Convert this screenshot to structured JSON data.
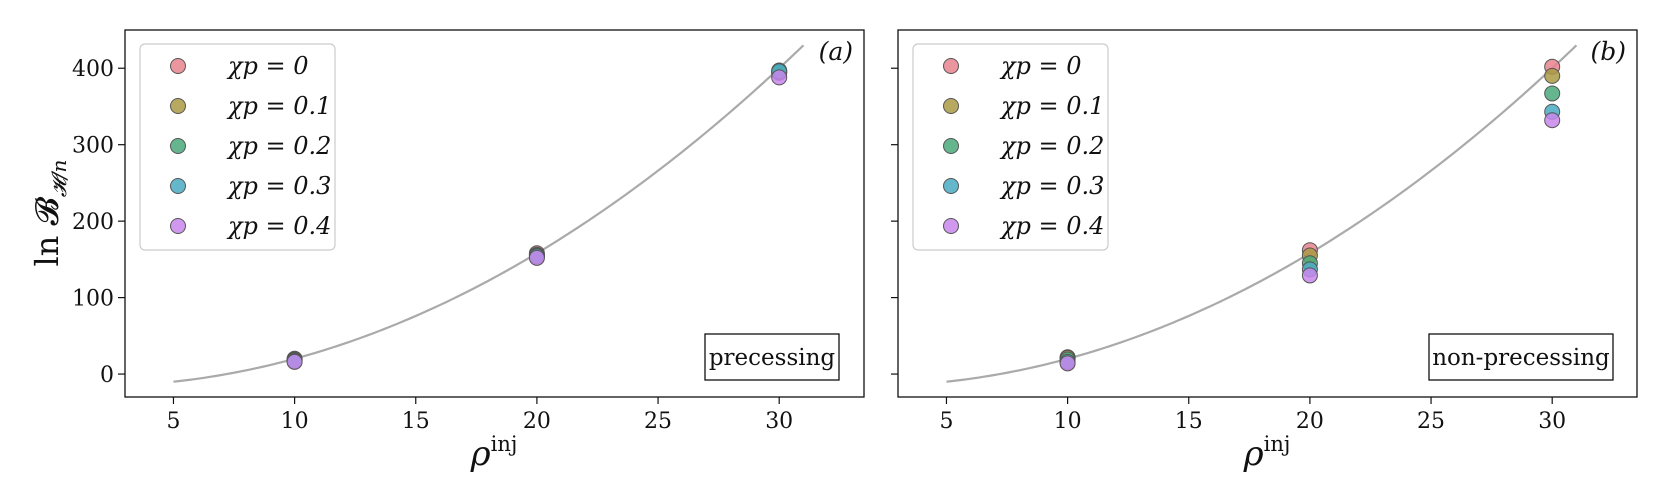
{
  "chart_data": [
    {
      "type": "scatter",
      "panel_label": "(a)",
      "box_label": "precessing",
      "xlabel": "ρ",
      "xlabel_sup": "inj",
      "ylabel": "ln 𝓑",
      "ylabel_sub": "𝓗/n",
      "xlim": [
        3,
        33.5
      ],
      "ylim": [
        -30,
        450
      ],
      "xticks": [
        5,
        10,
        15,
        20,
        25,
        30
      ],
      "yticks": [
        0,
        100,
        200,
        300,
        400
      ],
      "ytick_labels_visible": true,
      "grid": false,
      "legend_position": "top-left",
      "curve": {
        "color": "#aaaaaa",
        "x_range": [
          5,
          31
        ],
        "power": 2,
        "description_points": [
          [
            5,
            -10
          ],
          [
            10,
            22
          ],
          [
            20,
            158
          ],
          [
            30,
            400
          ],
          [
            31,
            428
          ]
        ]
      },
      "series": [
        {
          "name": "χp = 0",
          "color": "#e8838e",
          "x": [
            10,
            20,
            30
          ],
          "y": [
            20,
            158,
            397
          ]
        },
        {
          "name": "χp = 0.1",
          "color": "#ab9a45",
          "x": [
            10,
            20,
            30
          ],
          "y": [
            19,
            156,
            394
          ]
        },
        {
          "name": "χp = 0.2",
          "color": "#4aa97a",
          "x": [
            10,
            20,
            30
          ],
          "y": [
            18,
            155,
            395
          ]
        },
        {
          "name": "χp = 0.3",
          "color": "#4aaac3",
          "x": [
            10,
            20,
            30
          ],
          "y": [
            17,
            154,
            396
          ]
        },
        {
          "name": "χp = 0.4",
          "color": "#c887ec",
          "x": [
            10,
            20,
            30
          ],
          "y": [
            16,
            152,
            388
          ]
        }
      ]
    },
    {
      "type": "scatter",
      "panel_label": "(b)",
      "box_label": "non-precessing",
      "xlabel": "ρ",
      "xlabel_sup": "inj",
      "ylabel": "",
      "ylabel_sub": "",
      "xlim": [
        3,
        33.5
      ],
      "ylim": [
        -30,
        450
      ],
      "xticks": [
        5,
        10,
        15,
        20,
        25,
        30
      ],
      "yticks": [
        0,
        100,
        200,
        300,
        400
      ],
      "ytick_labels_visible": false,
      "grid": false,
      "legend_position": "top-left",
      "curve": {
        "color": "#aaaaaa",
        "x_range": [
          5,
          31
        ],
        "power": 2,
        "description_points": [
          [
            5,
            -10
          ],
          [
            10,
            22
          ],
          [
            20,
            158
          ],
          [
            30,
            400
          ],
          [
            31,
            428
          ]
        ]
      },
      "series": [
        {
          "name": "χp = 0",
          "color": "#e8838e",
          "x": [
            10,
            20,
            30
          ],
          "y": [
            22,
            162,
            402
          ]
        },
        {
          "name": "χp = 0.1",
          "color": "#ab9a45",
          "x": [
            10,
            20,
            30
          ],
          "y": [
            21,
            155,
            390
          ]
        },
        {
          "name": "χp = 0.2",
          "color": "#4aa97a",
          "x": [
            10,
            20,
            30
          ],
          "y": [
            19,
            145,
            367
          ]
        },
        {
          "name": "χp = 0.3",
          "color": "#4aaac3",
          "x": [
            10,
            20,
            30
          ],
          "y": [
            16,
            137,
            343
          ]
        },
        {
          "name": "χp = 0.4",
          "color": "#c887ec",
          "x": [
            10,
            20,
            30
          ],
          "y": [
            14,
            129,
            332
          ]
        }
      ]
    }
  ]
}
